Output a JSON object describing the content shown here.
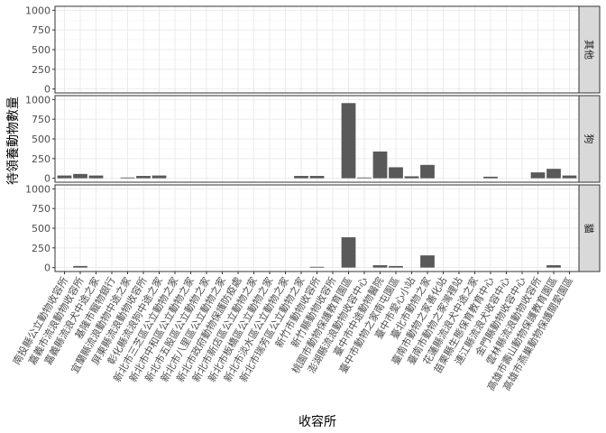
{
  "chart_data": {
    "type": "bar",
    "facet": "vertical",
    "xlabel": "收容所",
    "ylabel": "待領養動物數量",
    "ylim": [
      0,
      1000
    ],
    "yticks": [
      0,
      250,
      500,
      750,
      1000
    ],
    "grid": true,
    "categories": [
      "南投縣公立動物收容所",
      "嘉義市流浪動物收容所",
      "嘉義縣流浪犬中途之家",
      "基隆市寵物銀行",
      "宜蘭縣流浪動物中途之家",
      "屏東縣流浪動物收容所",
      "彰化縣流浪狗中途之家",
      "新北市三芝區公立動物之家",
      "新北市中和區公立動物之家",
      "新北市五股區公立動物之家",
      "新北市八里區公立動物之家",
      "新北市政府動物保護防疫處",
      "新北市新店區公立動物之家",
      "新北市板橋區公立動物之家",
      "新北市淡水區公立動物之家",
      "新北市瑞芳區公立動物之家",
      "新竹市動物收容所",
      "新竹縣動物收容所",
      "桃園市動物保護教育園區",
      "澎湖縣流浪動物收容中心",
      "臺中市中途動物醫院",
      "臺中市動物之家南屯園區",
      "臺中市愛心小站",
      "臺北市動物之家",
      "臺南市動物之家善化站",
      "臺南市動物之家灣裡站",
      "花蓮縣流浪犬中途之家",
      "苗栗縣生態保育教育中心",
      "連江縣流浪犬收容中心",
      "金門縣動物收容中心",
      "雲林縣流浪動物收容所",
      "高雄市壽山動物保護教育園區",
      "高雄市燕巢動物保護關愛園區"
    ],
    "series": [
      {
        "name": "其他",
        "values": [
          0,
          0,
          0,
          0,
          0,
          0,
          0,
          0,
          0,
          0,
          0,
          0,
          0,
          0,
          0,
          0,
          0,
          0,
          0,
          0,
          0,
          0,
          0,
          0,
          0,
          0,
          0,
          0,
          0,
          0,
          0,
          0,
          0
        ]
      },
      {
        "name": "狗",
        "values": [
          35,
          55,
          35,
          0,
          10,
          30,
          35,
          0,
          0,
          0,
          0,
          0,
          0,
          0,
          0,
          30,
          30,
          0,
          955,
          10,
          340,
          140,
          25,
          170,
          0,
          0,
          0,
          20,
          0,
          0,
          75,
          120,
          35
        ]
      },
      {
        "name": "貓",
        "values": [
          0,
          20,
          0,
          0,
          0,
          0,
          0,
          0,
          0,
          0,
          0,
          0,
          0,
          0,
          0,
          0,
          10,
          0,
          385,
          0,
          30,
          20,
          0,
          155,
          0,
          0,
          0,
          0,
          0,
          0,
          0,
          30,
          0
        ]
      }
    ]
  }
}
